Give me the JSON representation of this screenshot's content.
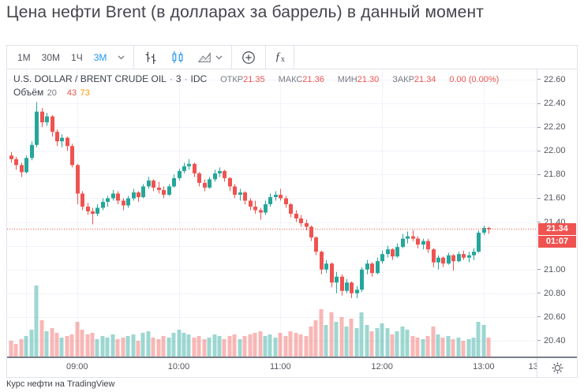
{
  "page": {
    "title": "Цена нефти Brent (в долларах за баррель) в данный момент",
    "caption": "Курс нефти на TradingView"
  },
  "colors": {
    "up": "#26a69a",
    "down": "#ef5350",
    "accent_blue": "#2196f3",
    "orange": "#ff9800",
    "grid": "#f0f3fa",
    "border": "#e0e3eb",
    "axis_text": "#52555e",
    "text_dark": "#434651",
    "text_gray": "#787b86",
    "separator_dark": "#7a7e87",
    "price_label_bg": "#ef5350"
  },
  "toolbar": {
    "timeframes": [
      {
        "label": "1М",
        "active": false
      },
      {
        "label": "30М",
        "active": false
      },
      {
        "label": "1Ч",
        "active": false
      },
      {
        "label": "3М",
        "active": true
      }
    ],
    "chart_types": [
      "bars",
      "candles",
      "area"
    ],
    "active_chart_type": "candles",
    "indicators_label": "ƒ"
  },
  "legend": {
    "symbol": "U.S. DOLLAR / BRENT CRUDE OIL",
    "sep": "·",
    "interval": "3",
    "exchange": "IDC",
    "ohlc": [
      {
        "label": "ОТКР",
        "value": "21.35"
      },
      {
        "label": "МАКС",
        "value": "21.36"
      },
      {
        "label": "МИН",
        "value": "21.30"
      },
      {
        "label": "ЗАКР",
        "value": "21.34"
      }
    ],
    "change": "0.00 (0.00%)",
    "volume": {
      "label": "Объём",
      "length": "20",
      "value": "43",
      "ma": "73"
    }
  },
  "price_axis": {
    "ticks": [
      "22.60",
      "22.40",
      "22.20",
      "22.00",
      "21.80",
      "21.60",
      "21.40",
      "21.00",
      "20.80",
      "20.60",
      "20.40"
    ],
    "last_price_label": "21.34",
    "countdown": "01:07"
  },
  "time_axis": {
    "ticks": [
      {
        "label": "09:00",
        "min": 39
      },
      {
        "label": "10:00",
        "min": 99
      },
      {
        "label": "11:00",
        "min": 159
      },
      {
        "label": "12:00",
        "min": 219
      },
      {
        "label": "13:00",
        "min": 279
      },
      {
        "label": "13:",
        "min": 309
      }
    ]
  },
  "chart_data": {
    "type": "candlestick+volume",
    "title": "U.S. DOLLAR / BRENT CRUDE OIL · 3 · IDC",
    "interval_minutes": 3,
    "start_time": "08:21",
    "end_time": "13:03",
    "last_price": 21.34,
    "change": "0.00 (0.00%)",
    "ylim": [
      20.267,
      22.686
    ],
    "price_gridlines": [
      20.4,
      20.6,
      20.8,
      21.0,
      21.2,
      21.4,
      21.6,
      21.8,
      22.0,
      22.2,
      22.4,
      22.6
    ],
    "time_gridlines_min": [
      9,
      39,
      99,
      159,
      219,
      279
    ],
    "x_offset": 5,
    "bar_spacing": 6.44,
    "legend_position": "top-left",
    "grid": true,
    "candles_format": "[open, high, low, close, volume_rel]",
    "candles": [
      [
        21.96,
        21.99,
        21.9,
        21.93,
        20
      ],
      [
        21.93,
        21.95,
        21.84,
        21.88,
        16
      ],
      [
        21.88,
        21.9,
        21.78,
        21.82,
        22
      ],
      [
        21.82,
        21.96,
        21.81,
        21.94,
        26
      ],
      [
        21.94,
        22.08,
        21.92,
        22.05,
        34
      ],
      [
        22.05,
        22.41,
        22.03,
        22.33,
        90
      ],
      [
        22.33,
        22.36,
        22.2,
        22.24,
        46
      ],
      [
        22.24,
        22.32,
        22.21,
        22.29,
        32
      ],
      [
        22.29,
        22.3,
        22.12,
        22.16,
        36
      ],
      [
        22.16,
        22.18,
        22.04,
        22.08,
        30
      ],
      [
        22.08,
        22.14,
        22.03,
        22.11,
        24
      ],
      [
        22.11,
        22.12,
        22.0,
        22.04,
        26
      ],
      [
        22.04,
        22.06,
        21.86,
        21.88,
        28
      ],
      [
        21.88,
        21.89,
        21.55,
        21.64,
        44
      ],
      [
        21.64,
        21.66,
        21.5,
        21.53,
        34
      ],
      [
        21.53,
        21.56,
        21.46,
        21.49,
        28
      ],
      [
        21.49,
        21.52,
        21.38,
        21.47,
        30
      ],
      [
        21.47,
        21.55,
        21.45,
        21.52,
        22
      ],
      [
        21.52,
        21.6,
        21.5,
        21.57,
        26
      ],
      [
        21.57,
        21.62,
        21.53,
        21.6,
        24
      ],
      [
        21.6,
        21.67,
        21.58,
        21.64,
        28
      ],
      [
        21.64,
        21.66,
        21.55,
        21.58,
        22
      ],
      [
        21.58,
        21.6,
        21.5,
        21.54,
        24
      ],
      [
        21.54,
        21.62,
        21.52,
        21.6,
        26
      ],
      [
        21.6,
        21.68,
        21.58,
        21.65,
        28
      ],
      [
        21.65,
        21.66,
        21.57,
        21.61,
        20
      ],
      [
        21.61,
        21.72,
        21.6,
        21.7,
        30
      ],
      [
        21.7,
        21.78,
        21.68,
        21.75,
        32
      ],
      [
        21.75,
        21.76,
        21.66,
        21.69,
        24
      ],
      [
        21.69,
        21.74,
        21.64,
        21.67,
        22
      ],
      [
        21.67,
        21.7,
        21.6,
        21.63,
        26
      ],
      [
        21.63,
        21.72,
        21.62,
        21.7,
        24
      ],
      [
        21.7,
        21.8,
        21.69,
        21.77,
        30
      ],
      [
        21.77,
        21.85,
        21.75,
        21.83,
        34
      ],
      [
        21.83,
        21.9,
        21.81,
        21.87,
        30
      ],
      [
        21.87,
        21.93,
        21.84,
        21.89,
        28
      ],
      [
        21.89,
        21.9,
        21.78,
        21.81,
        24
      ],
      [
        21.81,
        21.82,
        21.7,
        21.73,
        26
      ],
      [
        21.73,
        21.76,
        21.66,
        21.69,
        22
      ],
      [
        21.69,
        21.78,
        21.68,
        21.76,
        24
      ],
      [
        21.76,
        21.84,
        21.74,
        21.81,
        28
      ],
      [
        21.81,
        21.86,
        21.78,
        21.83,
        26
      ],
      [
        21.83,
        21.84,
        21.74,
        21.77,
        22
      ],
      [
        21.77,
        21.78,
        21.66,
        21.7,
        26
      ],
      [
        21.7,
        21.72,
        21.6,
        21.63,
        28
      ],
      [
        21.63,
        21.68,
        21.58,
        21.65,
        22
      ],
      [
        21.65,
        21.66,
        21.55,
        21.58,
        26
      ],
      [
        21.58,
        21.6,
        21.5,
        21.53,
        28
      ],
      [
        21.53,
        21.58,
        21.47,
        21.5,
        30
      ],
      [
        21.5,
        21.52,
        21.42,
        21.48,
        32
      ],
      [
        21.48,
        21.58,
        21.46,
        21.55,
        26
      ],
      [
        21.55,
        21.64,
        21.53,
        21.61,
        28
      ],
      [
        21.61,
        21.66,
        21.58,
        21.63,
        24
      ],
      [
        21.63,
        21.68,
        21.58,
        21.6,
        30
      ],
      [
        21.6,
        21.62,
        21.52,
        21.55,
        26
      ],
      [
        21.55,
        21.56,
        21.44,
        21.47,
        32
      ],
      [
        21.47,
        21.5,
        21.4,
        21.43,
        30
      ],
      [
        21.43,
        21.46,
        21.36,
        21.39,
        28
      ],
      [
        21.39,
        21.42,
        21.33,
        21.36,
        26
      ],
      [
        21.36,
        21.37,
        21.24,
        21.27,
        38
      ],
      [
        21.27,
        21.28,
        21.12,
        21.15,
        46
      ],
      [
        21.15,
        21.16,
        20.96,
        21.0,
        60
      ],
      [
        21.0,
        21.08,
        20.97,
        21.05,
        40
      ],
      [
        21.05,
        21.06,
        20.85,
        20.89,
        56
      ],
      [
        20.89,
        20.98,
        20.8,
        20.94,
        44
      ],
      [
        20.94,
        20.96,
        20.78,
        20.82,
        50
      ],
      [
        20.82,
        20.92,
        20.8,
        20.89,
        38
      ],
      [
        20.89,
        20.9,
        20.76,
        20.8,
        48
      ],
      [
        20.8,
        20.86,
        20.76,
        20.83,
        36
      ],
      [
        20.83,
        21.02,
        20.81,
        21.0,
        56
      ],
      [
        21.0,
        21.08,
        20.96,
        21.05,
        40
      ],
      [
        21.05,
        21.06,
        20.94,
        20.97,
        32
      ],
      [
        20.97,
        21.1,
        20.96,
        21.07,
        36
      ],
      [
        21.07,
        21.16,
        21.05,
        21.13,
        42
      ],
      [
        21.13,
        21.2,
        21.1,
        21.17,
        36
      ],
      [
        21.17,
        21.18,
        21.08,
        21.11,
        28
      ],
      [
        21.11,
        21.22,
        21.1,
        21.19,
        32
      ],
      [
        21.19,
        21.3,
        21.18,
        21.26,
        38
      ],
      [
        21.26,
        21.32,
        21.22,
        21.28,
        34
      ],
      [
        21.28,
        21.33,
        21.24,
        21.26,
        26
      ],
      [
        21.26,
        21.28,
        21.18,
        21.21,
        24
      ],
      [
        21.21,
        21.26,
        21.17,
        21.24,
        22
      ],
      [
        21.24,
        21.26,
        21.14,
        21.17,
        26
      ],
      [
        21.17,
        21.18,
        21.02,
        21.06,
        38
      ],
      [
        21.06,
        21.12,
        21.0,
        21.1,
        28
      ],
      [
        21.1,
        21.11,
        21.02,
        21.05,
        24
      ],
      [
        21.05,
        21.14,
        21.04,
        21.12,
        26
      ],
      [
        21.12,
        21.13,
        20.99,
        21.07,
        22
      ],
      [
        21.07,
        21.15,
        21.06,
        21.13,
        24
      ],
      [
        21.13,
        21.16,
        21.08,
        21.1,
        20
      ],
      [
        21.1,
        21.15,
        21.06,
        21.12,
        22
      ],
      [
        21.12,
        21.18,
        21.08,
        21.15,
        24
      ],
      [
        21.15,
        21.33,
        21.14,
        21.31,
        44
      ],
      [
        21.31,
        21.37,
        21.29,
        21.35,
        40
      ],
      [
        21.35,
        21.36,
        21.3,
        21.34,
        24
      ]
    ]
  }
}
